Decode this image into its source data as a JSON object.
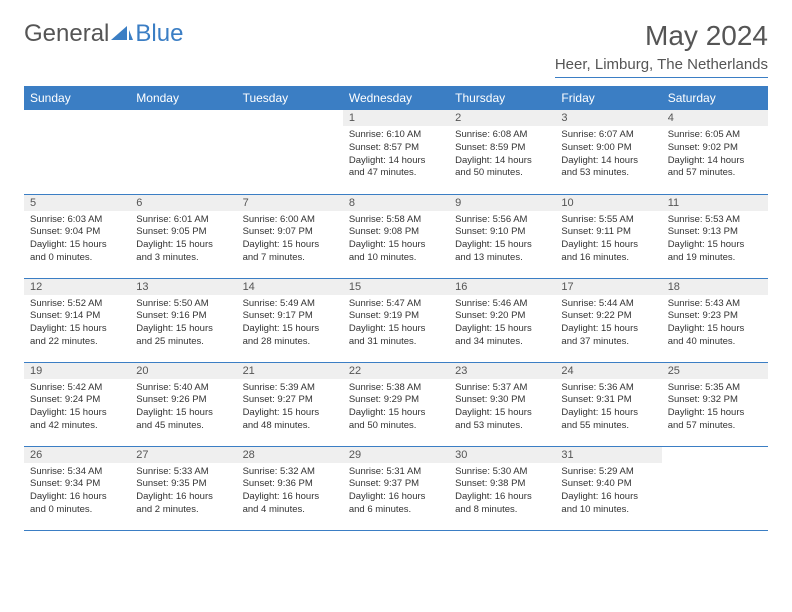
{
  "logo": {
    "text1": "General",
    "text2": "Blue"
  },
  "title": "May 2024",
  "location": "Heer, Limburg, The Netherlands",
  "day_headers": [
    "Sunday",
    "Monday",
    "Tuesday",
    "Wednesday",
    "Thursday",
    "Friday",
    "Saturday"
  ],
  "colors": {
    "accent": "#3b7ec4",
    "header_bg": "#3b7ec4",
    "header_text": "#ffffff",
    "daynum_bg": "#efefef",
    "body_text": "#333333",
    "muted_text": "#555555"
  },
  "weeks": [
    [
      null,
      null,
      null,
      {
        "n": "1",
        "sr": "Sunrise: 6:10 AM",
        "ss": "Sunset: 8:57 PM",
        "d1": "Daylight: 14 hours",
        "d2": "and 47 minutes."
      },
      {
        "n": "2",
        "sr": "Sunrise: 6:08 AM",
        "ss": "Sunset: 8:59 PM",
        "d1": "Daylight: 14 hours",
        "d2": "and 50 minutes."
      },
      {
        "n": "3",
        "sr": "Sunrise: 6:07 AM",
        "ss": "Sunset: 9:00 PM",
        "d1": "Daylight: 14 hours",
        "d2": "and 53 minutes."
      },
      {
        "n": "4",
        "sr": "Sunrise: 6:05 AM",
        "ss": "Sunset: 9:02 PM",
        "d1": "Daylight: 14 hours",
        "d2": "and 57 minutes."
      }
    ],
    [
      {
        "n": "5",
        "sr": "Sunrise: 6:03 AM",
        "ss": "Sunset: 9:04 PM",
        "d1": "Daylight: 15 hours",
        "d2": "and 0 minutes."
      },
      {
        "n": "6",
        "sr": "Sunrise: 6:01 AM",
        "ss": "Sunset: 9:05 PM",
        "d1": "Daylight: 15 hours",
        "d2": "and 3 minutes."
      },
      {
        "n": "7",
        "sr": "Sunrise: 6:00 AM",
        "ss": "Sunset: 9:07 PM",
        "d1": "Daylight: 15 hours",
        "d2": "and 7 minutes."
      },
      {
        "n": "8",
        "sr": "Sunrise: 5:58 AM",
        "ss": "Sunset: 9:08 PM",
        "d1": "Daylight: 15 hours",
        "d2": "and 10 minutes."
      },
      {
        "n": "9",
        "sr": "Sunrise: 5:56 AM",
        "ss": "Sunset: 9:10 PM",
        "d1": "Daylight: 15 hours",
        "d2": "and 13 minutes."
      },
      {
        "n": "10",
        "sr": "Sunrise: 5:55 AM",
        "ss": "Sunset: 9:11 PM",
        "d1": "Daylight: 15 hours",
        "d2": "and 16 minutes."
      },
      {
        "n": "11",
        "sr": "Sunrise: 5:53 AM",
        "ss": "Sunset: 9:13 PM",
        "d1": "Daylight: 15 hours",
        "d2": "and 19 minutes."
      }
    ],
    [
      {
        "n": "12",
        "sr": "Sunrise: 5:52 AM",
        "ss": "Sunset: 9:14 PM",
        "d1": "Daylight: 15 hours",
        "d2": "and 22 minutes."
      },
      {
        "n": "13",
        "sr": "Sunrise: 5:50 AM",
        "ss": "Sunset: 9:16 PM",
        "d1": "Daylight: 15 hours",
        "d2": "and 25 minutes."
      },
      {
        "n": "14",
        "sr": "Sunrise: 5:49 AM",
        "ss": "Sunset: 9:17 PM",
        "d1": "Daylight: 15 hours",
        "d2": "and 28 minutes."
      },
      {
        "n": "15",
        "sr": "Sunrise: 5:47 AM",
        "ss": "Sunset: 9:19 PM",
        "d1": "Daylight: 15 hours",
        "d2": "and 31 minutes."
      },
      {
        "n": "16",
        "sr": "Sunrise: 5:46 AM",
        "ss": "Sunset: 9:20 PM",
        "d1": "Daylight: 15 hours",
        "d2": "and 34 minutes."
      },
      {
        "n": "17",
        "sr": "Sunrise: 5:44 AM",
        "ss": "Sunset: 9:22 PM",
        "d1": "Daylight: 15 hours",
        "d2": "and 37 minutes."
      },
      {
        "n": "18",
        "sr": "Sunrise: 5:43 AM",
        "ss": "Sunset: 9:23 PM",
        "d1": "Daylight: 15 hours",
        "d2": "and 40 minutes."
      }
    ],
    [
      {
        "n": "19",
        "sr": "Sunrise: 5:42 AM",
        "ss": "Sunset: 9:24 PM",
        "d1": "Daylight: 15 hours",
        "d2": "and 42 minutes."
      },
      {
        "n": "20",
        "sr": "Sunrise: 5:40 AM",
        "ss": "Sunset: 9:26 PM",
        "d1": "Daylight: 15 hours",
        "d2": "and 45 minutes."
      },
      {
        "n": "21",
        "sr": "Sunrise: 5:39 AM",
        "ss": "Sunset: 9:27 PM",
        "d1": "Daylight: 15 hours",
        "d2": "and 48 minutes."
      },
      {
        "n": "22",
        "sr": "Sunrise: 5:38 AM",
        "ss": "Sunset: 9:29 PM",
        "d1": "Daylight: 15 hours",
        "d2": "and 50 minutes."
      },
      {
        "n": "23",
        "sr": "Sunrise: 5:37 AM",
        "ss": "Sunset: 9:30 PM",
        "d1": "Daylight: 15 hours",
        "d2": "and 53 minutes."
      },
      {
        "n": "24",
        "sr": "Sunrise: 5:36 AM",
        "ss": "Sunset: 9:31 PM",
        "d1": "Daylight: 15 hours",
        "d2": "and 55 minutes."
      },
      {
        "n": "25",
        "sr": "Sunrise: 5:35 AM",
        "ss": "Sunset: 9:32 PM",
        "d1": "Daylight: 15 hours",
        "d2": "and 57 minutes."
      }
    ],
    [
      {
        "n": "26",
        "sr": "Sunrise: 5:34 AM",
        "ss": "Sunset: 9:34 PM",
        "d1": "Daylight: 16 hours",
        "d2": "and 0 minutes."
      },
      {
        "n": "27",
        "sr": "Sunrise: 5:33 AM",
        "ss": "Sunset: 9:35 PM",
        "d1": "Daylight: 16 hours",
        "d2": "and 2 minutes."
      },
      {
        "n": "28",
        "sr": "Sunrise: 5:32 AM",
        "ss": "Sunset: 9:36 PM",
        "d1": "Daylight: 16 hours",
        "d2": "and 4 minutes."
      },
      {
        "n": "29",
        "sr": "Sunrise: 5:31 AM",
        "ss": "Sunset: 9:37 PM",
        "d1": "Daylight: 16 hours",
        "d2": "and 6 minutes."
      },
      {
        "n": "30",
        "sr": "Sunrise: 5:30 AM",
        "ss": "Sunset: 9:38 PM",
        "d1": "Daylight: 16 hours",
        "d2": "and 8 minutes."
      },
      {
        "n": "31",
        "sr": "Sunrise: 5:29 AM",
        "ss": "Sunset: 9:40 PM",
        "d1": "Daylight: 16 hours",
        "d2": "and 10 minutes."
      },
      null
    ]
  ]
}
